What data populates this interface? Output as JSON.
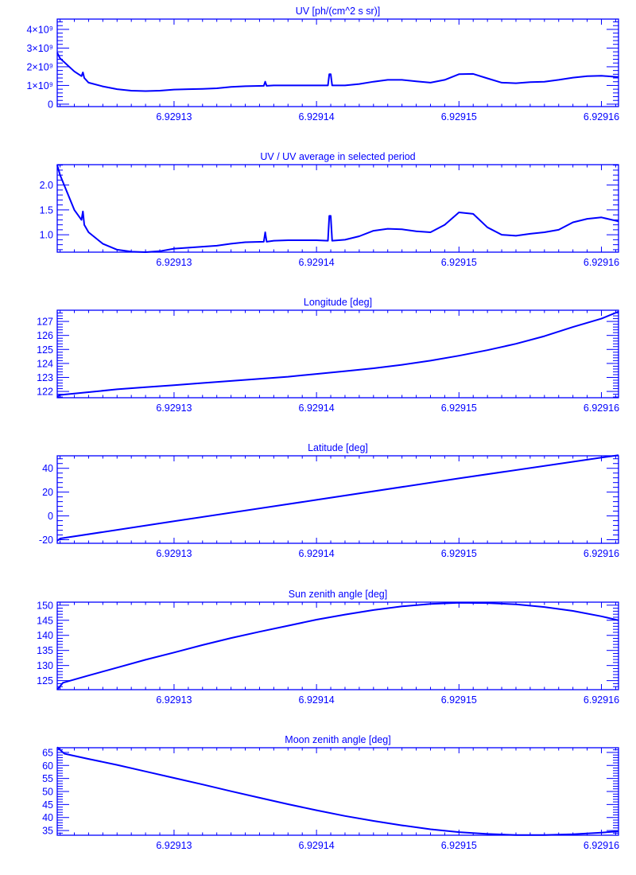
{
  "chart_data": [
    {
      "type": "line",
      "title": "UV [ph/(cm^2 s sr)]",
      "xlim": [
        6.9291218,
        6.9291612
      ],
      "ylim": [
        -0.13,
        4.55
      ],
      "y_multiplier": "1e9",
      "xticks": [
        6.92913,
        6.92914,
        6.92915,
        6.92916
      ],
      "xtick_labels": [
        "6.92913",
        "6.92914",
        "6.92915",
        "6.92916"
      ],
      "yticks": [
        0,
        1,
        2,
        3,
        4
      ],
      "ytick_labels": [
        "0",
        "1×10⁹",
        "2×10⁹",
        "3×10⁹",
        "4×10⁹"
      ],
      "x": [
        6.9291218,
        6.929122,
        6.929123,
        6.9291235,
        6.9291236,
        6.9291237,
        6.929124,
        6.929125,
        6.929126,
        6.929127,
        6.929128,
        6.929129,
        6.92913,
        6.929131,
        6.929132,
        6.929133,
        6.929134,
        6.929135,
        6.9291363,
        6.9291364,
        6.9291365,
        6.929137,
        6.929138,
        6.929139,
        6.92914,
        6.9291408,
        6.9291409,
        6.929141,
        6.9291411,
        6.929142,
        6.929143,
        6.929144,
        6.929145,
        6.929146,
        6.929147,
        6.929148,
        6.929149,
        6.92915,
        6.929151,
        6.929152,
        6.929153,
        6.929154,
        6.929155,
        6.929156,
        6.929157,
        6.929158,
        6.929159,
        6.92916,
        6.9291612
      ],
      "y": [
        2.75,
        2.45,
        1.75,
        1.5,
        1.7,
        1.4,
        1.15,
        0.95,
        0.8,
        0.72,
        0.7,
        0.72,
        0.78,
        0.8,
        0.82,
        0.85,
        0.92,
        0.96,
        0.98,
        1.2,
        0.98,
        1.0,
        1.0,
        1.0,
        1.0,
        1.0,
        1.6,
        1.6,
        1.0,
        1.0,
        1.08,
        1.2,
        1.3,
        1.3,
        1.22,
        1.15,
        1.3,
        1.6,
        1.62,
        1.38,
        1.15,
        1.12,
        1.18,
        1.2,
        1.3,
        1.42,
        1.5,
        1.52,
        1.45
      ]
    },
    {
      "type": "line",
      "title": "UV / UV average in selected period",
      "xlim": [
        6.9291218,
        6.9291612
      ],
      "ylim": [
        0.65,
        2.41
      ],
      "xticks": [
        6.92913,
        6.92914,
        6.92915,
        6.92916
      ],
      "xtick_labels": [
        "6.92913",
        "6.92914",
        "6.92915",
        "6.92916"
      ],
      "yticks": [
        1.0,
        1.5,
        2.0
      ],
      "ytick_labels": [
        "1.0",
        "1.5",
        "2.0"
      ],
      "x": [
        6.9291218,
        6.929122,
        6.929123,
        6.9291235,
        6.9291236,
        6.9291237,
        6.929124,
        6.929125,
        6.929126,
        6.929127,
        6.929128,
        6.929129,
        6.92913,
        6.929131,
        6.929132,
        6.929133,
        6.929134,
        6.929135,
        6.9291363,
        6.9291364,
        6.9291365,
        6.929137,
        6.929138,
        6.929139,
        6.92914,
        6.9291408,
        6.9291409,
        6.929141,
        6.9291411,
        6.929142,
        6.929143,
        6.929144,
        6.929145,
        6.929146,
        6.929147,
        6.929148,
        6.929149,
        6.92915,
        6.929151,
        6.929152,
        6.929153,
        6.929154,
        6.929155,
        6.929156,
        6.929157,
        6.929158,
        6.929159,
        6.92916,
        6.9291612
      ],
      "y": [
        2.4,
        2.2,
        1.5,
        1.3,
        1.47,
        1.2,
        1.05,
        0.82,
        0.7,
        0.66,
        0.65,
        0.67,
        0.72,
        0.74,
        0.76,
        0.78,
        0.82,
        0.85,
        0.86,
        1.05,
        0.86,
        0.88,
        0.89,
        0.89,
        0.89,
        0.88,
        1.38,
        1.38,
        0.88,
        0.9,
        0.97,
        1.08,
        1.12,
        1.11,
        1.07,
        1.05,
        1.2,
        1.45,
        1.42,
        1.15,
        1.0,
        0.98,
        1.02,
        1.05,
        1.1,
        1.25,
        1.32,
        1.35,
        1.27
      ]
    },
    {
      "type": "line",
      "title": "Longitude [deg]",
      "xlim": [
        6.9291218,
        6.9291612
      ],
      "ylim": [
        121.55,
        127.8
      ],
      "xticks": [
        6.92913,
        6.92914,
        6.92915,
        6.92916
      ],
      "xtick_labels": [
        "6.92913",
        "6.92914",
        "6.92915",
        "6.92916"
      ],
      "yticks": [
        122,
        123,
        124,
        125,
        126,
        127
      ],
      "ytick_labels": [
        "122",
        "123",
        "124",
        "125",
        "126",
        "127"
      ],
      "x": [
        6.9291218,
        6.929122,
        6.929124,
        6.929126,
        6.929128,
        6.92913,
        6.929132,
        6.929134,
        6.929136,
        6.929138,
        6.92914,
        6.929142,
        6.929144,
        6.929146,
        6.929148,
        6.92915,
        6.929152,
        6.929154,
        6.929156,
        6.929158,
        6.92916,
        6.9291612
      ],
      "y": [
        121.65,
        121.75,
        121.95,
        122.15,
        122.3,
        122.45,
        122.6,
        122.75,
        122.9,
        123.05,
        123.25,
        123.45,
        123.65,
        123.9,
        124.2,
        124.55,
        124.95,
        125.4,
        125.95,
        126.6,
        127.2,
        127.7
      ]
    },
    {
      "type": "line",
      "title": "Latitude [deg]",
      "xlim": [
        6.9291218,
        6.9291612
      ],
      "ylim": [
        -23,
        50.5
      ],
      "xticks": [
        6.92913,
        6.92914,
        6.92915,
        6.92916
      ],
      "xtick_labels": [
        "6.92913",
        "6.92914",
        "6.92915",
        "6.92916"
      ],
      "yticks": [
        -20,
        0,
        20,
        40
      ],
      "ytick_labels": [
        "-20",
        "0",
        "20",
        "40"
      ],
      "x": [
        6.9291218,
        6.929122,
        6.92913,
        6.92914,
        6.92915,
        6.92916,
        6.9291612
      ],
      "y": [
        -21,
        -19,
        -4.5,
        13.5,
        31.5,
        49,
        51
      ]
    },
    {
      "type": "line",
      "title": "Sun zenith angle [deg]",
      "xlim": [
        6.9291218,
        6.9291612
      ],
      "ylim": [
        122,
        151
      ],
      "xticks": [
        6.92913,
        6.92914,
        6.92915,
        6.92916
      ],
      "xtick_labels": [
        "6.92913",
        "6.92914",
        "6.92915",
        "6.92916"
      ],
      "yticks": [
        125,
        130,
        135,
        140,
        145,
        150
      ],
      "ytick_labels": [
        "125",
        "130",
        "135",
        "140",
        "145",
        "150"
      ],
      "x": [
        6.9291218,
        6.9291222,
        6.929124,
        6.929126,
        6.929128,
        6.92913,
        6.929132,
        6.929134,
        6.929136,
        6.929138,
        6.92914,
        6.929142,
        6.929144,
        6.929146,
        6.929148,
        6.92915,
        6.929152,
        6.929154,
        6.929156,
        6.929158,
        6.92916,
        6.9291612
      ],
      "y": [
        122,
        124.3,
        126.7,
        129.3,
        131.9,
        134.3,
        136.8,
        139.1,
        141.2,
        143.2,
        145.2,
        146.9,
        148.4,
        149.6,
        150.4,
        150.8,
        150.7,
        150.3,
        149.4,
        148.1,
        146.3,
        145
      ]
    },
    {
      "type": "line",
      "title": "Moon zenith angle [deg]",
      "xlim": [
        6.9291218,
        6.9291612
      ],
      "ylim": [
        33.2,
        66.8
      ],
      "xticks": [
        6.92913,
        6.92914,
        6.92915,
        6.92916
      ],
      "xtick_labels": [
        "6.92913",
        "6.92914",
        "6.92915",
        "6.92916"
      ],
      "yticks": [
        35,
        40,
        45,
        50,
        55,
        60,
        65
      ],
      "ytick_labels": [
        "35",
        "40",
        "45",
        "50",
        "55",
        "60",
        "65"
      ],
      "x": [
        6.9291218,
        6.9291221,
        6.9291223,
        6.929124,
        6.929126,
        6.929128,
        6.92913,
        6.929132,
        6.929134,
        6.929136,
        6.929138,
        6.92914,
        6.929142,
        6.929144,
        6.929146,
        6.929148,
        6.92915,
        6.929152,
        6.929154,
        6.929156,
        6.929158,
        6.92916,
        6.9291612
      ],
      "y": [
        67,
        65.5,
        64.5,
        62.5,
        60.2,
        57.7,
        55.2,
        52.7,
        50.1,
        47.6,
        45.1,
        42.8,
        40.6,
        38.7,
        37,
        35.5,
        34.4,
        33.7,
        33.3,
        33.3,
        33.6,
        34.2,
        34.7
      ]
    }
  ],
  "colors": {
    "line": "#0000ff",
    "background": "#ffffff"
  }
}
